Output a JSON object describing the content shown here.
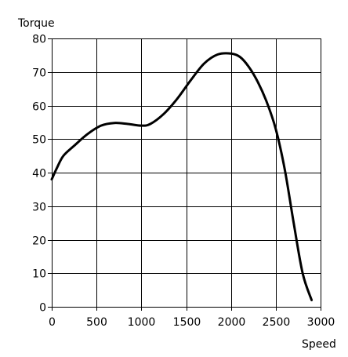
{
  "chart_data": {
    "type": "line",
    "title": "",
    "xlabel": "Speed",
    "ylabel": "Torque",
    "xlim": [
      0,
      3000
    ],
    "ylim": [
      0,
      80
    ],
    "xticks": [
      0,
      500,
      1000,
      1500,
      2000,
      2500,
      3000
    ],
    "yticks": [
      0,
      10,
      20,
      30,
      40,
      50,
      60,
      70,
      80
    ],
    "grid": true,
    "series": [
      {
        "color": "#000000",
        "x": [
          0,
          60,
          130,
          250,
          400,
          550,
          700,
          850,
          1000,
          1100,
          1250,
          1400,
          1550,
          1700,
          1850,
          2000,
          2100,
          2200,
          2300,
          2400,
          2500,
          2600,
          2700,
          2800,
          2900
        ],
        "y": [
          38,
          41.5,
          45,
          48,
          51.5,
          54,
          54.8,
          54.5,
          54,
          54.5,
          57.5,
          62,
          67.5,
          72.5,
          75.2,
          75.5,
          74.5,
          71.5,
          67,
          61,
          53,
          41,
          25,
          10,
          2
        ]
      }
    ]
  }
}
